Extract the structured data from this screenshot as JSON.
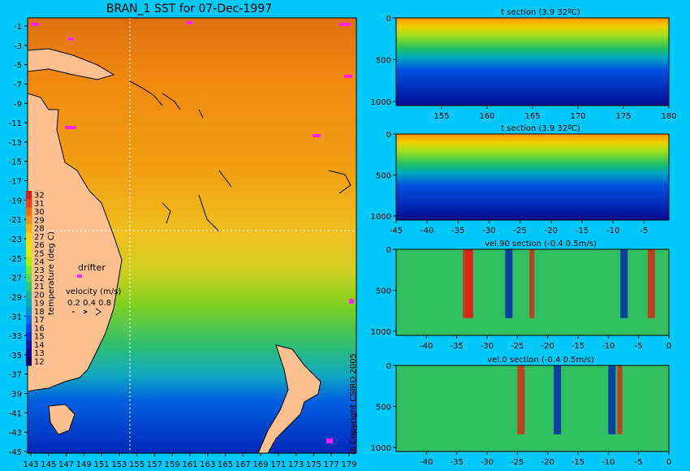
{
  "title": "BRAN_1 SST for 07-Dec-1997",
  "copyright": "@ Copyright CSIRO 2005",
  "map": {
    "colorbar": {
      "label": "temperature (deg C)",
      "ticks": [
        "32",
        "31",
        "30",
        "29",
        "28",
        "27",
        "26",
        "25",
        "24",
        "23",
        "22",
        "21",
        "20",
        "19",
        "18",
        "17",
        "16",
        "15",
        "14",
        "13",
        "12"
      ],
      "colors": [
        "#e01818",
        "#f03a10",
        "#ff6a00",
        "#ff9000",
        "#ffb000",
        "#ffcf00",
        "#f0e000",
        "#d8ef00",
        "#b0f000",
        "#80e820",
        "#50d850",
        "#30c878",
        "#10b898",
        "#00a8c0",
        "#0090e0",
        "#0070f0",
        "#0050e8",
        "#0030d0",
        "#0018b0",
        "#000c90",
        "#000070"
      ]
    },
    "drifter_label": "drifter",
    "velocity": {
      "label": "velocity (m/s)",
      "scale": "0.2 0.4 0.8"
    },
    "x_ticks": [
      "143",
      "145",
      "147",
      "149",
      "151",
      "153",
      "155",
      "157",
      "159",
      "161",
      "163",
      "165",
      "167",
      "169",
      "171",
      "173",
      "175",
      "177",
      "179"
    ],
    "y_ticks": [
      "-1",
      "-3",
      "-5",
      "-7",
      "-9",
      "-11",
      "-13",
      "-15",
      "-17",
      "-19",
      "-21",
      "-23",
      "-25",
      "-27",
      "-29",
      "-31",
      "-33",
      "-35",
      "-37",
      "-39",
      "-41",
      "-43",
      "-45"
    ]
  },
  "chart_data": [
    {
      "type": "heatmap",
      "title": "t section (3.9     32ºC)",
      "x_ticks": [
        "155",
        "160",
        "165",
        "170",
        "175",
        "180"
      ],
      "xlim": [
        150,
        180
      ],
      "y_ticks": [
        "0",
        "500",
        "1000"
      ],
      "ylim": [
        1050,
        0
      ],
      "colors": {
        "surface": "#ff9c00",
        "mid": "#20c060",
        "deep": "#000c90"
      }
    },
    {
      "type": "heatmap",
      "title": "t section (3.9     32ºC)",
      "x_ticks": [
        "-45",
        "-40",
        "-35",
        "-30",
        "-25",
        "-20",
        "-15",
        "-10",
        "-5"
      ],
      "xlim": [
        -45,
        -1
      ],
      "y_ticks": [
        "0",
        "500",
        "1000"
      ],
      "ylim": [
        1050,
        0
      ],
      "colors": {
        "surface": "#ff9c00",
        "mid": "#20c060",
        "deep": "#000c90"
      }
    },
    {
      "type": "heatmap",
      "title": "vel.90 section (-0.4      0.5m/s)",
      "x_ticks": [
        "-40",
        "-35",
        "-30",
        "-25",
        "-20",
        "-15",
        "-10",
        "-5",
        "0"
      ],
      "xlim": [
        -45,
        0
      ],
      "y_ticks": [
        "0",
        "500",
        "1000"
      ],
      "ylim": [
        1050,
        0
      ],
      "colors": {
        "background": "#30c060",
        "positive": "#e02010",
        "negative": "#0020b0"
      }
    },
    {
      "type": "heatmap",
      "title": "vel.0 section (-0.4      0.5m/s)",
      "x_ticks": [
        "-40",
        "-35",
        "-30",
        "-25",
        "-20",
        "-15",
        "-10",
        "-5",
        "0"
      ],
      "xlim": [
        -45,
        0
      ],
      "y_ticks": [
        "0",
        "500",
        "1000"
      ],
      "ylim": [
        1050,
        0
      ],
      "colors": {
        "background": "#30c060",
        "positive": "#e02010",
        "negative": "#0020b0"
      }
    }
  ]
}
